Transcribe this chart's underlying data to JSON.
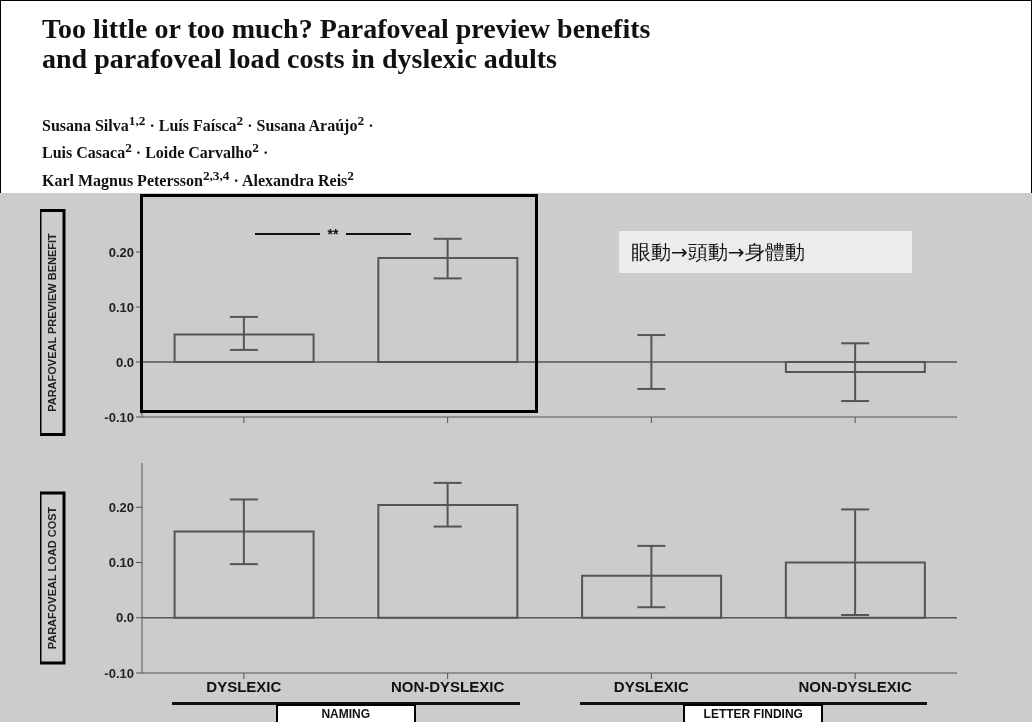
{
  "chart_data": [
    {
      "type": "bar",
      "title": "Too little or too much? Parafoveal preview benefits\nand parafoveal load costs in dyslexic adults",
      "subtitle": "Susana Silva$^{1,2}$ · Luís Faísca$^{2}$ · Susana Araújo$^{2}$ ·\nLuis Casaca$^{2}$ · Loide Carvalho$^{2}$ ·\nKarl Magnus Petersson$^{2,3,4}$ · Alexandra Reis$^{2}$",
      "ylabel": "PARAFOVEAL PREVIEW BENEFIT",
      "categories": [
        null,
        null,
        null,
        null
      ],
      "values": [
        0.05,
        0.189,
        0,
        -0.018
      ],
      "errors": [
        [
          0.022,
          0.082
        ],
        [
          0.152,
          0.224
        ],
        [
          -0.049,
          0.049
        ],
        [
          -0.071,
          0.034
        ]
      ],
      "color": "#cccccc",
      "ylim": [
        -0.1,
        0.28
      ],
      "yticks": [
        {
          "value": -0.1,
          "label": "-0.10"
        },
        {
          "value": 0,
          "label": "0.0"
        },
        {
          "value": 0.1,
          "label": "0.10"
        },
        {
          "value": 0.2,
          "label": "0.20"
        }
      ],
      "ref_lines": [
        {
          "axis": "y",
          "value": 0
        }
      ],
      "annotations": [
        "**",
        "眼動→頭動→身體動"
      ]
    },
    {
      "type": "bar",
      "ylabel": "PARAFOVEAL LOAD COST",
      "categories": [
        "DYSLEXIC",
        "NON-DYSLEXIC",
        "DYSLEXIC",
        "NON-DYSLEXIC"
      ],
      "values": [
        0.156,
        0.204,
        0.076,
        0.1
      ],
      "errors": [
        [
          0.097,
          0.214
        ],
        [
          0.165,
          0.244
        ],
        [
          0.019,
          0.13
        ],
        [
          0.005,
          0.196
        ]
      ],
      "color": "#cccccc",
      "ylim": [
        -0.1,
        0.28
      ],
      "yticks": [
        {
          "value": -0.1,
          "label": "-0.10"
        },
        {
          "value": 0,
          "label": "0.0"
        },
        {
          "value": 0.1,
          "label": "0.10"
        },
        {
          "value": 0.2,
          "label": "0.20"
        }
      ],
      "ref_lines": [
        {
          "axis": "y",
          "value": 0
        }
      ],
      "annotations": [
        "NAMING",
        "LETTER FINDING"
      ]
    }
  ]
}
